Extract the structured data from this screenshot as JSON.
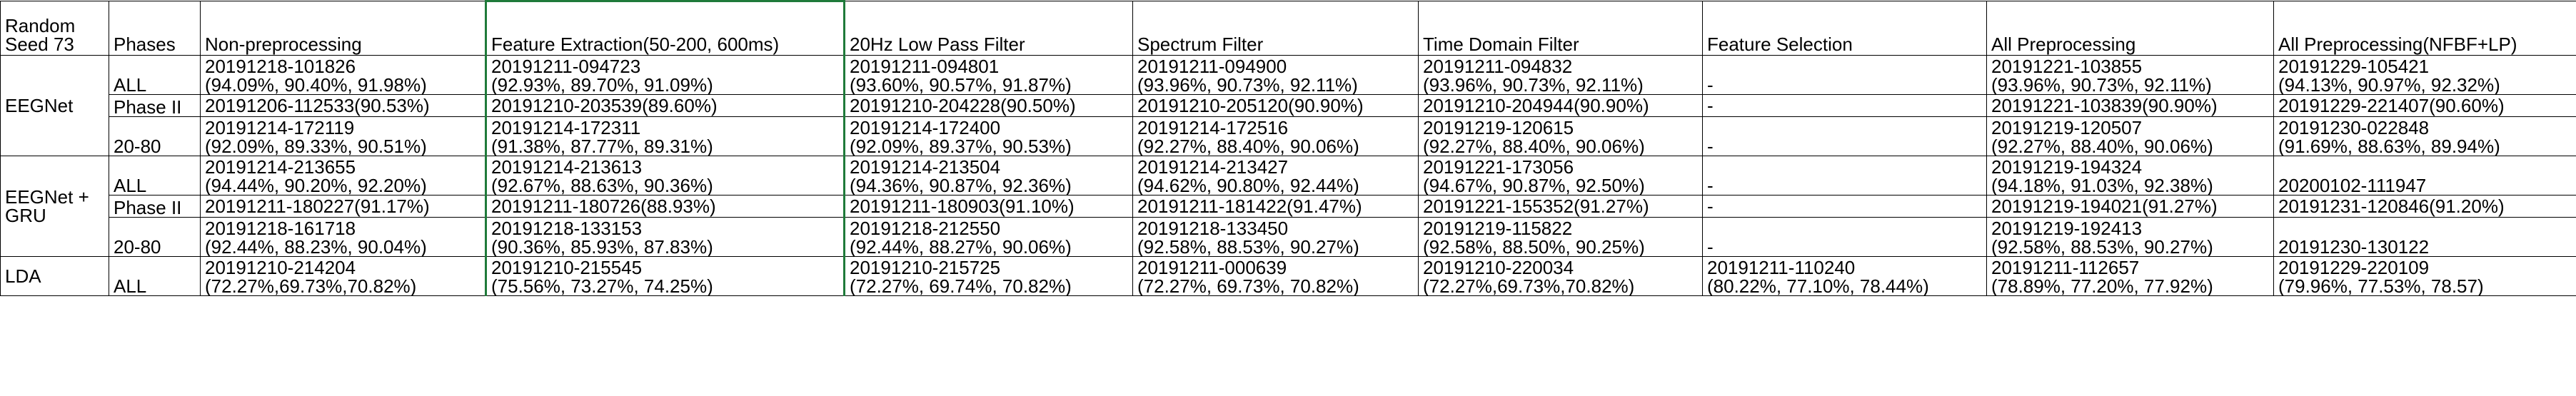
{
  "header": {
    "seed": [
      "Random",
      "Seed 73"
    ],
    "phases": "Phases",
    "columns": [
      "Non-preprocessing",
      "Feature Extraction(50-200, 600ms)",
      "20Hz Low Pass Filter",
      "Spectrum Filter",
      "Time Domain Filter",
      "Feature Selection",
      "All Preprocessing",
      "All Preprocessing(NFBF+LP)"
    ]
  },
  "groups": [
    {
      "model": "EEGNet",
      "rows": [
        {
          "phase": "ALL",
          "cells": [
            [
              "20191218-101826",
              "(94.09%, 90.40%, 91.98%)"
            ],
            [
              "20191211-094723",
              "(92.93%, 89.70%, 91.09%)"
            ],
            [
              "20191211-094801",
              "(93.60%, 90.57%, 91.87%)"
            ],
            [
              "20191211-094900",
              "(93.96%, 90.73%, 92.11%)"
            ],
            [
              "20191211-094832",
              "(93.96%, 90.73%, 92.11%)"
            ],
            [
              "-"
            ],
            [
              "20191221-103855",
              "(93.96%, 90.73%, 92.11%)"
            ],
            [
              "20191229-105421",
              "(94.13%, 90.97%, 92.32%)"
            ]
          ]
        },
        {
          "phase": "Phase II",
          "cells": [
            [
              "20191206-112533(90.53%)"
            ],
            [
              "20191210-203539(89.60%)"
            ],
            [
              "20191210-204228(90.50%)"
            ],
            [
              "20191210-205120(90.90%)"
            ],
            [
              "20191210-204944(90.90%)"
            ],
            [
              "-"
            ],
            [
              "20191221-103839(90.90%)"
            ],
            [
              "20191229-221407(90.60%)"
            ]
          ]
        },
        {
          "phase": "20-80",
          "cells": [
            [
              "20191214-172119",
              "(92.09%, 89.33%, 90.51%)"
            ],
            [
              "20191214-172311",
              "(91.38%, 87.77%, 89.31%)"
            ],
            [
              "20191214-172400",
              "(92.09%, 89.37%, 90.53%)"
            ],
            [
              "20191214-172516",
              "(92.27%, 88.40%, 90.06%)"
            ],
            [
              "20191219-120615",
              "(92.27%, 88.40%, 90.06%)"
            ],
            [
              "-"
            ],
            [
              "20191219-120507",
              "(92.27%, 88.40%, 90.06%)"
            ],
            [
              "20191230-022848",
              "(91.69%, 88.63%, 89.94%)"
            ]
          ]
        }
      ]
    },
    {
      "model": [
        "EEGNet +",
        "GRU"
      ],
      "rows": [
        {
          "phase": "ALL",
          "cells": [
            [
              "20191214-213655",
              "(94.44%, 90.20%, 92.20%)"
            ],
            [
              "20191214-213613",
              "(92.67%, 88.63%, 90.36%)"
            ],
            [
              "20191214-213504",
              "(94.36%, 90.87%, 92.36%)"
            ],
            [
              "20191214-213427",
              "(94.62%, 90.80%, 92.44%)"
            ],
            [
              "20191221-173056",
              "(94.67%, 90.87%, 92.50%)"
            ],
            [
              "-"
            ],
            [
              "20191219-194324",
              "(94.18%, 91.03%, 92.38%)"
            ],
            [
              "20200102-111947"
            ]
          ]
        },
        {
          "phase": "Phase II",
          "cells": [
            [
              "20191211-180227(91.17%)"
            ],
            [
              "20191211-180726(88.93%)"
            ],
            [
              "20191211-180903(91.10%)"
            ],
            [
              "20191211-181422(91.47%)"
            ],
            [
              "20191221-155352(91.27%)"
            ],
            [
              "-"
            ],
            [
              "20191219-194021(91.27%)"
            ],
            [
              "20191231-120846(91.20%)"
            ]
          ]
        },
        {
          "phase": "20-80",
          "cells": [
            [
              "20191218-161718",
              "(92.44%, 88.23%, 90.04%)"
            ],
            [
              "20191218-133153",
              "(90.36%, 85.93%, 87.83%)"
            ],
            [
              "20191218-212550",
              "(92.44%, 88.27%, 90.06%)"
            ],
            [
              "20191218-133450",
              "(92.58%, 88.53%, 90.27%)"
            ],
            [
              "20191219-115822",
              "(92.58%, 88.50%, 90.25%)"
            ],
            [
              "-"
            ],
            [
              "20191219-192413",
              "(92.58%, 88.53%, 90.27%)"
            ],
            [
              "20191230-130122"
            ]
          ]
        }
      ]
    },
    {
      "model": "LDA",
      "rows": [
        {
          "phase": "ALL",
          "cells": [
            [
              "20191210-214204",
              "(72.27%,69.73%,70.82%)"
            ],
            [
              "20191210-215545",
              "(75.56%, 73.27%, 74.25%)"
            ],
            [
              "20191210-215725",
              "(72.27%, 69.74%, 70.82%)"
            ],
            [
              "20191211-000639",
              "(72.27%, 69.73%, 70.82%)"
            ],
            [
              "20191210-220034",
              "(72.27%,69.73%,70.82%)"
            ],
            [
              "20191211-110240",
              "(80.22%, 77.10%, 78.44%)"
            ],
            [
              "20191211-112657",
              "(78.89%, 77.20%, 77.92%)"
            ],
            [
              "20191229-220109",
              "(79.96%, 77.53%, 78.57)"
            ]
          ]
        }
      ]
    }
  ]
}
